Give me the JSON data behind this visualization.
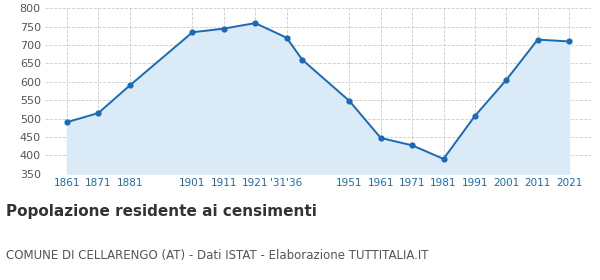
{
  "years": [
    1861,
    1871,
    1881,
    1901,
    1911,
    1921,
    1931,
    1936,
    1951,
    1961,
    1971,
    1981,
    1991,
    2001,
    2011,
    2021
  ],
  "values": [
    490,
    515,
    590,
    735,
    745,
    760,
    720,
    660,
    548,
    447,
    427,
    390,
    507,
    605,
    715,
    710
  ],
  "x_tick_positions": [
    1861,
    1871,
    1881,
    1901,
    1911,
    1921,
    1931,
    1951,
    1961,
    1971,
    1981,
    1991,
    2001,
    2011,
    2021
  ],
  "x_tick_labels": [
    "1861",
    "1871",
    "1881",
    "1901",
    "1911",
    "1921",
    "'31'36",
    "1951",
    "1961",
    "1971",
    "1981",
    "1991",
    "2001",
    "2011",
    "2021"
  ],
  "ylim": [
    350,
    800
  ],
  "yticks": [
    350,
    400,
    450,
    500,
    550,
    600,
    650,
    700,
    750,
    800
  ],
  "xlim_min": 1854,
  "xlim_max": 2028,
  "line_color": "#1a6ab5",
  "fill_color": "#daeaf7",
  "marker_color": "#1a6ab5",
  "grid_color": "#cccccc",
  "bg_color": "#ffffff",
  "title": "Popolazione residente ai censimenti",
  "subtitle": "COMUNE DI CELLARENGO (AT) - Dati ISTAT - Elaborazione TUTTITALIA.IT",
  "title_fontsize": 11,
  "subtitle_fontsize": 8.5,
  "x_tick_color": "#1a6ab5",
  "y_tick_color": "#555555",
  "y_tick_fontsize": 8,
  "x_tick_fontsize": 7.5
}
